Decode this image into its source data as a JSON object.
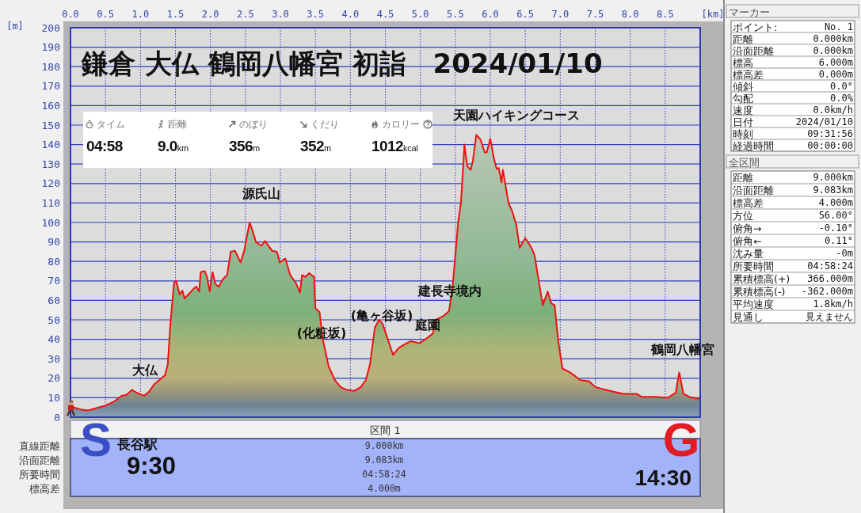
{
  "chart_data": [
    {
      "type": "area",
      "title": "鎌倉 大仏 鶴岡八幡宮 初詣　2024/01/10",
      "xlabel": "[km]",
      "ylabel": "[m]",
      "color": "#ee1111",
      "x": [
        0,
        0.05,
        0.15,
        0.25,
        0.35,
        0.5,
        0.62,
        0.73,
        0.8,
        0.88,
        0.95,
        1.05,
        1.12,
        1.2,
        1.3,
        1.35,
        1.39,
        1.43,
        1.48,
        1.51,
        1.56,
        1.6,
        1.63,
        1.71,
        1.76,
        1.8,
        1.84,
        1.86,
        1.92,
        1.95,
        1.99,
        2.03,
        2.07,
        2.12,
        2.18,
        2.24,
        2.29,
        2.35,
        2.43,
        2.48,
        2.56,
        2.6,
        2.65,
        2.73,
        2.78,
        2.88,
        2.95,
        2.99,
        3.07,
        3.14,
        3.22,
        3.28,
        3.31,
        3.36,
        3.41,
        3.48,
        3.5,
        3.56,
        3.6,
        3.69,
        3.78,
        3.86,
        3.95,
        4.05,
        4.15,
        4.22,
        4.28,
        4.35,
        4.41,
        4.46,
        4.54,
        4.61,
        4.69,
        4.78,
        4.86,
        4.99,
        5.11,
        5.18,
        5.22,
        5.33,
        5.41,
        5.46,
        5.5,
        5.54,
        5.58,
        5.62,
        5.63,
        5.67,
        5.72,
        5.75,
        5.8,
        5.86,
        5.92,
        5.95,
        6,
        6.05,
        6.09,
        6.12,
        6.16,
        6.18,
        6.26,
        6.31,
        6.37,
        6.42,
        6.5,
        6.58,
        6.63,
        6.69,
        6.75,
        6.82,
        6.87,
        6.92,
        6.97,
        7.03,
        7.14,
        7.29,
        7.41,
        7.5,
        7.71,
        7.9,
        8.09,
        8.16,
        8.35,
        8.54,
        8.6,
        8.65,
        8.7,
        8.76,
        8.84,
        8.97,
        9
      ],
      "values": [
        6,
        5,
        4,
        3.5,
        4.5,
        6,
        8,
        11,
        11.5,
        14,
        12.5,
        11,
        13,
        17,
        20,
        21.5,
        27,
        49,
        69,
        70,
        63,
        65,
        61,
        64,
        66,
        67,
        64.5,
        74.5,
        75,
        72,
        64.5,
        74.5,
        68.5,
        67,
        71,
        73,
        85,
        85.5,
        79.5,
        85,
        100,
        96,
        90,
        88,
        90.5,
        85.5,
        85,
        79.5,
        81.5,
        73,
        69,
        64,
        73,
        72,
        74,
        72,
        56,
        54,
        41,
        26,
        19,
        15.5,
        14,
        13.5,
        15.5,
        19,
        27,
        46,
        50,
        48,
        39.5,
        32,
        35.5,
        37.5,
        39,
        38,
        41,
        43,
        50,
        52,
        54.5,
        66.5,
        83,
        100,
        110,
        133,
        140,
        129,
        127,
        131.5,
        145,
        142.5,
        136,
        136,
        143,
        133,
        127.5,
        128,
        120.5,
        127,
        110,
        106,
        99,
        87,
        92,
        87.5,
        83.5,
        70.5,
        57.5,
        64.5,
        58.5,
        57.5,
        39.5,
        25,
        23,
        19,
        18.5,
        15.5,
        13.5,
        12,
        12,
        10.5,
        10.5,
        10,
        11.5,
        12.5,
        23,
        12,
        10.5,
        9.5,
        10
      ],
      "xlim": [
        0,
        9
      ],
      "ylim": [
        0,
        200
      ],
      "xticks": [
        {
          "value": 0,
          "label": "0.0"
        },
        0.5,
        {
          "value": 1,
          "label": "1.0"
        },
        1.5,
        {
          "value": 2,
          "label": "2.0"
        },
        2.5,
        {
          "value": 3,
          "label": "3.0"
        },
        3.5,
        {
          "value": 4,
          "label": "4.0"
        },
        4.5,
        {
          "value": 5,
          "label": "5.0"
        },
        5.5,
        {
          "value": 6,
          "label": "6.0"
        },
        6.5,
        {
          "value": 7,
          "label": "7.0"
        },
        7.5,
        {
          "value": 8,
          "label": "8.0"
        },
        8.5
      ],
      "yticks": [
        0,
        10,
        20,
        30,
        40,
        50,
        60,
        70,
        80,
        90,
        100,
        110,
        120,
        130,
        140,
        150,
        160,
        170,
        180,
        190,
        200
      ],
      "grid": true,
      "annotations": [
        "大仏",
        "源氏山",
        "(化粧坂)",
        "(亀ヶ谷坂)",
        "建長寺境内",
        "庭園",
        "天園ハイキングコース",
        "鶴岡八幡宮"
      ]
    },
    {
      "type": "other",
      "annotations": [
        "タイム",
        "04:58",
        "距離",
        "9.0km",
        "のぼり",
        "356m",
        "くだり",
        "352m",
        "カロリー",
        "1012kcal"
      ]
    },
    {
      "type": "other",
      "title": "区間 1",
      "annotations": [
        "直線距離",
        "沿面距離",
        "所要時間",
        "標高差",
        "9.000km",
        "9.083km",
        "04:58:24",
        "4.000m",
        "S",
        "長谷駅",
        "9:30",
        "G",
        "14:30"
      ]
    },
    {
      "type": "other",
      "title": "マーカー",
      "annotations": [
        "ポイント:",
        "No. 1",
        "距離",
        "0.000km",
        "沿面距離",
        "0.000km",
        "標高",
        "6.000m",
        "標高差",
        "0.000m",
        "傾斜",
        "0.0°",
        "勾配",
        "0.0%",
        "速度",
        "0.0km/h",
        "日付",
        "2024/01/10",
        "時刻",
        "09:31:56",
        "経過時間",
        "00:00:00"
      ]
    },
    {
      "type": "other",
      "title": "全区間",
      "annotations": [
        "距離",
        "9.000km",
        "沿面距離",
        "9.083km",
        "標高差",
        "4.000m",
        "方位",
        "56.00°",
        "俯角→",
        "-0.10°",
        "俯角←",
        "0.11°",
        "沈み量",
        "-0m",
        "所要時間",
        "04:58:24",
        "累積標高(+)",
        "366.000m",
        "累積標高(-)",
        "-362.000m",
        "平均速度",
        "1.8km/h",
        "見通し",
        "見えません"
      ]
    }
  ]
}
